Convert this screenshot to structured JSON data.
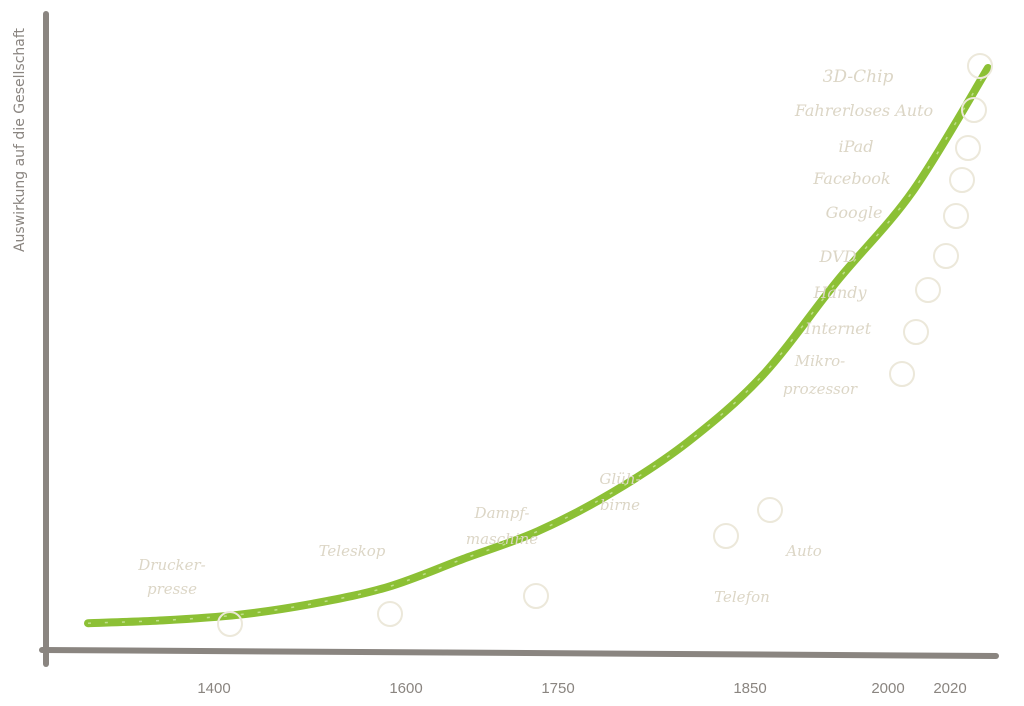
{
  "chart_data": {
    "type": "line",
    "title": "",
    "xlabel": "",
    "ylabel": "Auswirkung auf die Gesellschaft",
    "x_ticks": [
      "1400",
      "1600",
      "1750",
      "1850",
      "2000",
      "2020"
    ],
    "series": [
      {
        "values": [
          0.5,
          1,
          2,
          4,
          7,
          12,
          17,
          24,
          33,
          45,
          62,
          78,
          100
        ]
      }
    ],
    "annotations": [
      {
        "lines": [
          "Drucker-",
          "presse"
        ]
      },
      {
        "lines": [
          "Teleskop"
        ]
      },
      {
        "lines": [
          "Dampf-",
          "maschine"
        ]
      },
      {
        "lines": [
          "Glüh-",
          "birne"
        ]
      },
      {
        "lines": [
          "Auto"
        ]
      },
      {
        "lines": [
          "Telefon"
        ]
      },
      {
        "lines": [
          "Mikro-",
          "prozessor"
        ]
      },
      {
        "lines": [
          "Internet"
        ]
      },
      {
        "lines": [
          "Handy"
        ]
      },
      {
        "lines": [
          "DVD"
        ]
      },
      {
        "lines": [
          "Google"
        ]
      },
      {
        "lines": [
          "Facebook"
        ]
      },
      {
        "lines": [
          "iPad"
        ]
      },
      {
        "lines": [
          "Fahrerloses Auto"
        ]
      },
      {
        "lines": [
          "3D-Chip"
        ]
      }
    ],
    "colors": {
      "axis": "#8a8580",
      "curve": "#8cc035",
      "annotation": "#dcd6c6"
    },
    "grid": false,
    "legend": "none"
  }
}
